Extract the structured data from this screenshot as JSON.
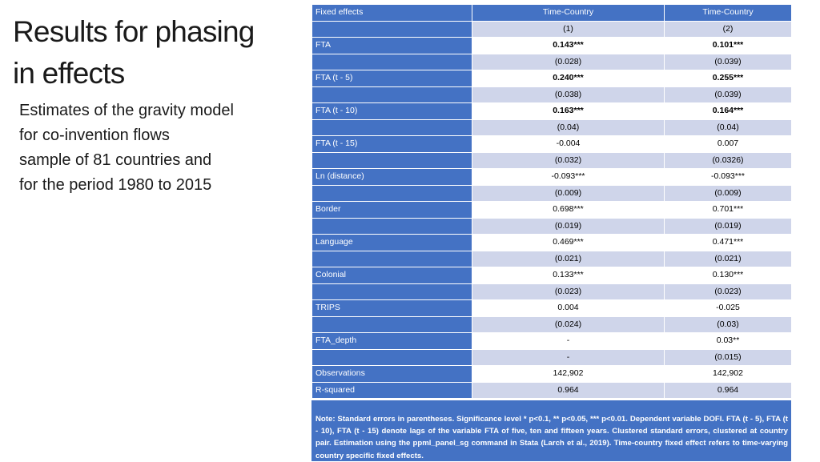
{
  "slide": {
    "title_line1": "Results for phasing",
    "title_line2": "in effects",
    "subtitle_lines": [
      "Estimates of the gravity model",
      "for co-invention flows",
      "sample of 81 countries and",
      "for the period 1980 to 2015"
    ]
  },
  "table": {
    "header": {
      "label": "Fixed effects",
      "col1": "Time-Country",
      "col2": "Time-Country"
    },
    "col_numbers": {
      "label": "",
      "col1": "(1)",
      "col2": "(2)"
    },
    "rows": [
      {
        "label": "FTA",
        "col1": "0.143***",
        "col2": "0.101***"
      },
      {
        "label": "",
        "col1": "(0.028)",
        "col2": "(0.039)"
      },
      {
        "label": "FTA (t - 5)",
        "col1": "0.240***",
        "col2": "0.255***"
      },
      {
        "label": "",
        "col1": "(0.038)",
        "col2": "(0.039)"
      },
      {
        "label": "FTA (t - 10)",
        "col1": "0.163***",
        "col2": "0.164***"
      },
      {
        "label": "",
        "col1": "(0.04)",
        "col2": "(0.04)"
      },
      {
        "label": "FTA (t - 15)",
        "col1": "-0.004",
        "col2": "0.007"
      },
      {
        "label": "",
        "col1": "(0.032)",
        "col2": "(0.0326)"
      },
      {
        "label": "Ln (distance)",
        "col1": "-0.093***",
        "col2": "-0.093***"
      },
      {
        "label": "",
        "col1": "(0.009)",
        "col2": "(0.009)"
      },
      {
        "label": "Border",
        "col1": "0.698***",
        "col2": "0.701***"
      },
      {
        "label": "",
        "col1": "(0.019)",
        "col2": "(0.019)"
      },
      {
        "label": "Language",
        "col1": "0.469***",
        "col2": "0.471***"
      },
      {
        "label": "",
        "col1": "(0.021)",
        "col2": "(0.021)"
      },
      {
        "label": "Colonial",
        "col1": "0.133***",
        "col2": "0.130***"
      },
      {
        "label": "",
        "col1": "(0.023)",
        "col2": "(0.023)"
      },
      {
        "label": "TRIPS",
        "col1": "0.004",
        "col2": "-0.025"
      },
      {
        "label": "",
        "col1": "(0.024)",
        "col2": "(0.03)"
      },
      {
        "label": "FTA_depth",
        "col1": "-",
        "col2": "0.03**"
      },
      {
        "label": "",
        "col1": "-",
        "col2": "(0.015)"
      },
      {
        "label": "Observations",
        "col1": "142,902",
        "col2": "142,902"
      },
      {
        "label": "R-squared",
        "col1": "0.964",
        "col2": "0.964"
      }
    ],
    "note": "Note: Standard errors in parentheses. Significance level * p<0.1, ** p<0.05, *** p<0.01. Dependent variable DOFI.  FTA (t - 5), FTA (t - 10), FTA (t - 15) denote lags of the variable FTA of five, ten and fifteen years. Clustered standard errors, clustered at country pair. Estimation using the ppml_panel_sg command in Stata (Larch et al., 2019). Time-country fixed effect refers to time-varying country specific fixed effects."
  },
  "colors": {
    "header_blue": "#4472c4",
    "row_light": "#cfd5ea",
    "row_white": "#ffffff"
  }
}
